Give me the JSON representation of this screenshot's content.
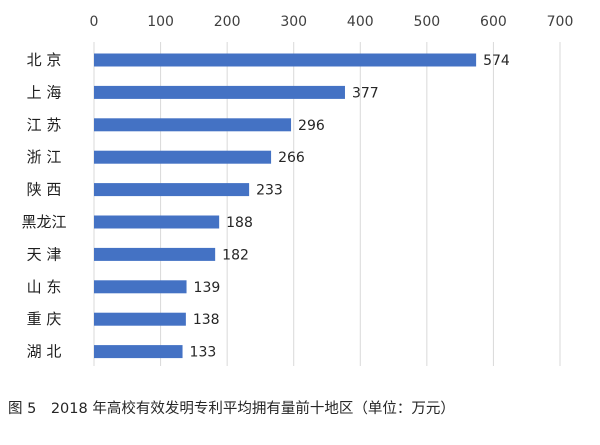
{
  "chart_data": {
    "type": "bar",
    "orientation": "horizontal",
    "categories": [
      "北 京",
      "上 海",
      "江 苏",
      "浙 江",
      "陕 西",
      "黑龙江",
      "天 津",
      "山 东",
      "重 庆",
      "湖 北"
    ],
    "values": [
      574,
      377,
      296,
      266,
      233,
      188,
      182,
      139,
      138,
      133
    ],
    "xlim": [
      0,
      700
    ],
    "xticks": [
      0,
      100,
      200,
      300,
      400,
      500,
      600,
      700
    ],
    "x_axis_position": "top",
    "grid": true,
    "data_labels": true,
    "bar_color": "#4472C4",
    "legend": false
  },
  "caption": "图 5　2018 年高校有效发明专利平均拥有量前十地区（单位：万元）"
}
